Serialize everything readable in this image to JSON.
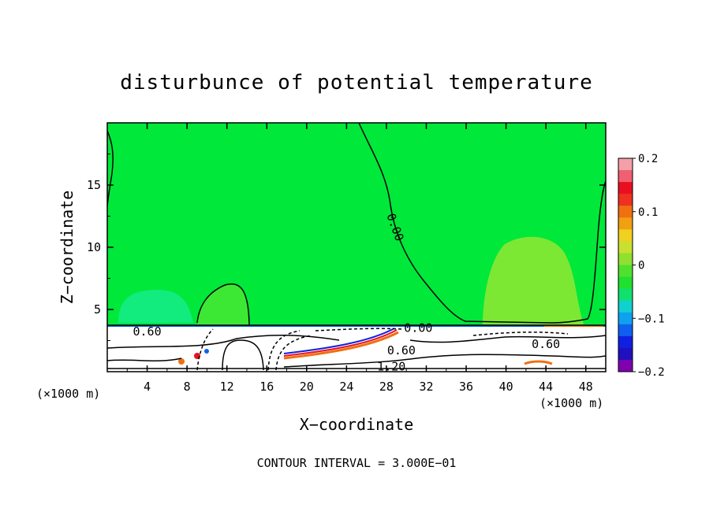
{
  "chart_data": {
    "type": "heatmap",
    "title": "disturbunce of potential temperature",
    "xlabel": "X−coordinate",
    "ylabel": "Z−coordinate",
    "x_unit": "(×1000 m)",
    "y_unit": "(×1000 m)",
    "xlim": [
      0,
      50
    ],
    "ylim": [
      0,
      20
    ],
    "x_ticks": [
      4,
      8,
      12,
      16,
      20,
      24,
      28,
      32,
      36,
      40,
      44,
      48
    ],
    "y_ticks": [
      5,
      10,
      15
    ],
    "footer": "CONTOUR INTERVAL = 3.000E−01",
    "contour_labels": [
      {
        "text": "0.00",
        "x": 28.5,
        "z": 11.5
      },
      {
        "text": "0.00",
        "x": 31.2,
        "z": 3.2
      },
      {
        "text": "0.60",
        "x": 4.0,
        "z": 2.9
      },
      {
        "text": "0.60",
        "x": 29.5,
        "z": 1.4
      },
      {
        "text": "0.60",
        "x": 44.0,
        "z": 1.9
      },
      {
        "text": "1.20",
        "x": 28.5,
        "z": 0.1
      }
    ],
    "colorbar": {
      "min": -0.2,
      "max": 0.2,
      "tick_values": [
        0.2,
        0.1,
        0,
        -0.1,
        -0.2
      ],
      "tick_labels": [
        "0.2",
        "0.1",
        "0",
        "−0.1",
        "−0.2"
      ],
      "colors": [
        "#f4a0a8",
        "#f06070",
        "#e81020",
        "#f03020",
        "#f07010",
        "#f0a010",
        "#f0d020",
        "#c8e030",
        "#90e030",
        "#50e030",
        "#20e030",
        "#10e070",
        "#10d0d0",
        "#10a0f0",
        "#1060f0",
        "#1020e0",
        "#2010c0",
        "#8000b0"
      ]
    },
    "field_colors": {
      "zero": "#00e83a",
      "warm_patch": "#7ce834",
      "cool_patch": "#18ec96",
      "stable_layer": "#ffffff",
      "inversion_warm": "#f07010",
      "inversion_hot": "#e81020",
      "inversion_cool": "#1060f0"
    }
  }
}
